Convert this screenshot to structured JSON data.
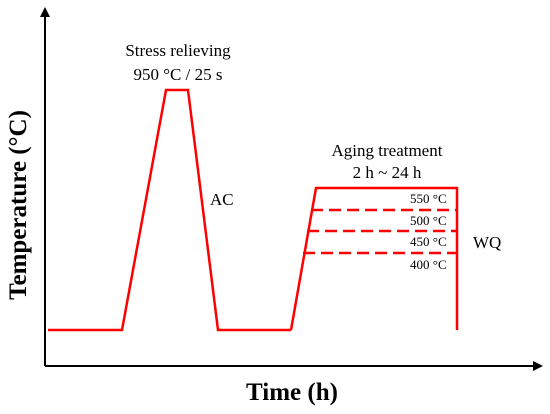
{
  "axes": {
    "x_label": "Time (h)",
    "y_label": "Temperature (°C)"
  },
  "annotations": {
    "stress_title": "Stress relieving",
    "stress_params": "950 °C / 25 s",
    "cooling_1": "AC",
    "aging_title": "Aging treatment",
    "aging_time": "2 h ~ 24 h",
    "cooling_2": "WQ"
  },
  "aging_levels": [
    {
      "label": "550 °C",
      "style": "solid"
    },
    {
      "label": "500 °C",
      "style": "dashed"
    },
    {
      "label": "450 °C",
      "style": "dashed"
    },
    {
      "label": "400 °C",
      "style": "dashed"
    }
  ],
  "colors": {
    "profile": "#ff0000",
    "axis": "#000000",
    "text": "#000000"
  }
}
